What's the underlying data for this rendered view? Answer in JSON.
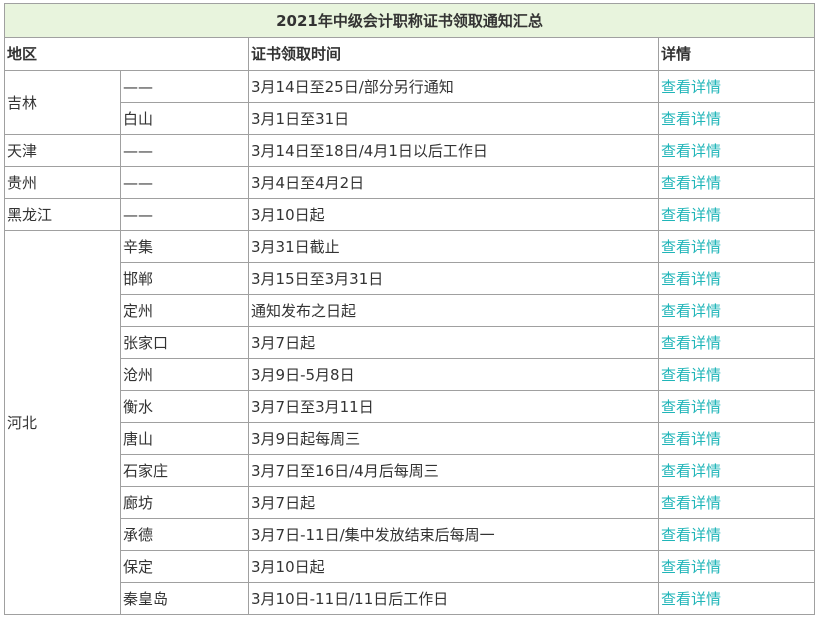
{
  "table": {
    "title": "2021年中级会计职称证书领取通知汇总",
    "headers": {
      "region": "地区",
      "time": "证书领取时间",
      "detail": "详情"
    },
    "link_text": "查看详情",
    "colors": {
      "title_bg": "#e8f4dd",
      "link": "#1fb5b8",
      "border": "#a0a0a0"
    },
    "groups": [
      {
        "province": "吉林",
        "rows": [
          {
            "city": "——",
            "time": "3月14日至25日/部分另行通知"
          },
          {
            "city": "白山",
            "time": "3月1日至31日"
          }
        ]
      },
      {
        "province": "天津",
        "rows": [
          {
            "city": "——",
            "time": "3月14日至18日/4月1日以后工作日"
          }
        ]
      },
      {
        "province": "贵州",
        "rows": [
          {
            "city": "——",
            "time": "3月4日至4月2日"
          }
        ]
      },
      {
        "province": "黑龙江",
        "rows": [
          {
            "city": "——",
            "time": "3月10日起"
          }
        ]
      },
      {
        "province": "河北",
        "rows": [
          {
            "city": "辛集",
            "time": "3月31日截止"
          },
          {
            "city": "邯郸",
            "time": "3月15日至3月31日"
          },
          {
            "city": "定州",
            "time": "通知发布之日起"
          },
          {
            "city": "张家口",
            "time": "3月7日起"
          },
          {
            "city": "沧州",
            "time": "3月9日-5月8日"
          },
          {
            "city": "衡水",
            "time": "3月7日至3月11日"
          },
          {
            "city": "唐山",
            "time": "3月9日起每周三"
          },
          {
            "city": "石家庄",
            "time": "3月7日至16日/4月后每周三"
          },
          {
            "city": "廊坊",
            "time": "3月7日起"
          },
          {
            "city": "承德",
            "time": "3月7日-11日/集中发放结束后每周一"
          },
          {
            "city": "保定",
            "time": "3月10日起"
          },
          {
            "city": "秦皇岛",
            "time": "3月10日-11日/11日后工作日"
          }
        ]
      }
    ]
  }
}
